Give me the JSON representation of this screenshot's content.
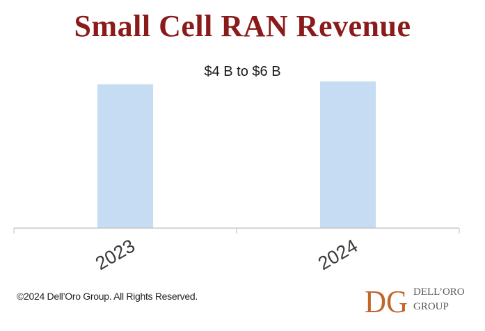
{
  "colors": {
    "title": "#8b1a1a",
    "bar": "#c5dcf3",
    "axis": "#bfbfbf",
    "logo_mark": "#c0662a"
  },
  "chart_data": {
    "type": "bar",
    "title": "Small Cell RAN Revenue",
    "subtitle": "$4 B to $6 B",
    "categories": [
      "2023",
      "2024"
    ],
    "values": [
      5.0,
      5.1
    ],
    "ylim": [
      0,
      6
    ],
    "xlabel": "",
    "ylabel": "",
    "grid": false,
    "legend": "none"
  },
  "footer": {
    "copyright": "©2024 Dell’Oro Group. All Rights Reserved.",
    "logo_mark": "DG",
    "logo_line1": "DELL’ORO",
    "logo_line2": "GROUP"
  }
}
